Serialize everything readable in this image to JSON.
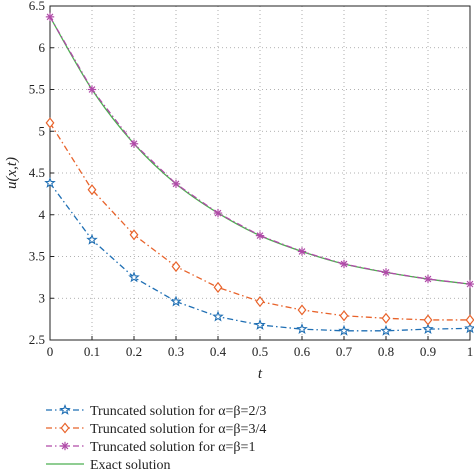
{
  "chart_data": {
    "type": "line",
    "xlabel": "t",
    "ylabel": "u(x,t)",
    "xlim": [
      0,
      1
    ],
    "ylim": [
      2.5,
      6.5
    ],
    "grid": true,
    "legend_placement": "bottom",
    "x_ticks": [
      "0",
      "0.1",
      "0.2",
      "0.3",
      "0.4",
      "0.5",
      "0.6",
      "0.7",
      "0.8",
      "0.9",
      "1"
    ],
    "y_ticks": [
      "2.5",
      "3",
      "3.5",
      "4",
      "4.5",
      "5",
      "5.5",
      "6",
      "6.5"
    ],
    "x": [
      0,
      0.1,
      0.2,
      0.3,
      0.4,
      0.5,
      0.6,
      0.7,
      0.8,
      0.9,
      1
    ],
    "series": [
      {
        "name": "Truncated solution for α=β=2/3",
        "color": "#1f6fb4",
        "line_style": "dash-dot",
        "marker": "star",
        "values": [
          4.38,
          3.7,
          3.25,
          2.96,
          2.78,
          2.68,
          2.63,
          2.61,
          2.61,
          2.63,
          2.64
        ]
      },
      {
        "name": "Truncated solution for α=β=3/4",
        "color": "#e8632b",
        "line_style": "dash-dot",
        "marker": "diamond",
        "values": [
          5.1,
          4.3,
          3.76,
          3.38,
          3.13,
          2.96,
          2.86,
          2.79,
          2.76,
          2.74,
          2.74
        ]
      },
      {
        "name": "Truncated solution for α=β=1",
        "color": "#b04aa8",
        "line_style": "dash-dot",
        "marker": "asterisk",
        "values": [
          6.37,
          5.5,
          4.85,
          4.37,
          4.02,
          3.75,
          3.56,
          3.41,
          3.31,
          3.23,
          3.17
        ]
      },
      {
        "name": "Exact solution",
        "color": "#4caf50",
        "line_style": "solid",
        "marker": "none",
        "values": [
          6.37,
          5.5,
          4.85,
          4.37,
          4.02,
          3.75,
          3.56,
          3.41,
          3.31,
          3.23,
          3.17
        ]
      }
    ]
  }
}
